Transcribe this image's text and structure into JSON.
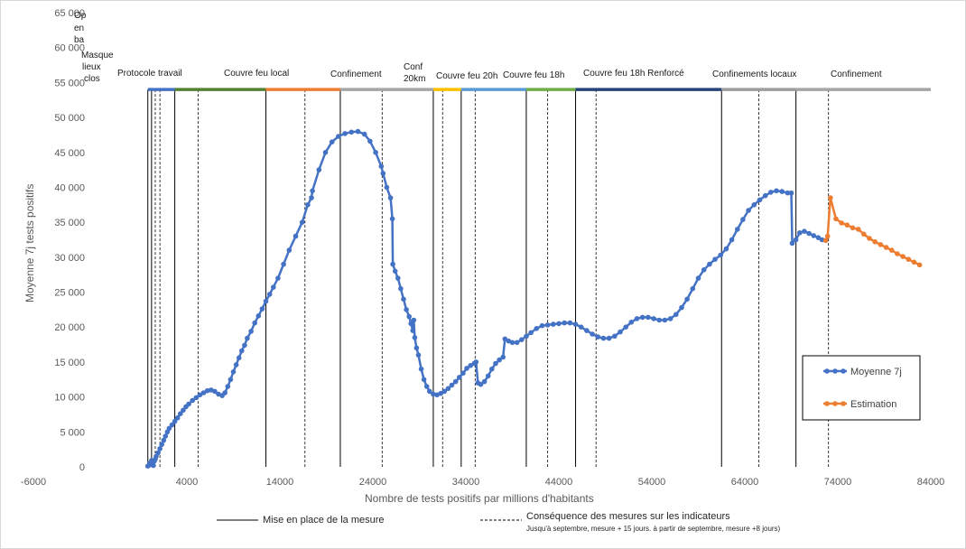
{
  "chart_data": {
    "type": "line",
    "xlabel": "Nombre  de tests positifs par millions d'habitants",
    "ylabel": "Moyenne  7j tests positifs",
    "xlim": [
      -6000,
      84000
    ],
    "ylim": [
      0,
      65000
    ],
    "x_ticks": [
      -6000,
      4000,
      14000,
      24000,
      34000,
      44000,
      54000,
      64000,
      74000,
      84000
    ],
    "y_ticks": [
      0,
      5000,
      10000,
      15000,
      20000,
      25000,
      30000,
      35000,
      40000,
      45000,
      50000,
      55000,
      60000,
      65000
    ],
    "x_tick_labels": [
      "-6000",
      "4000",
      "14000",
      "24000",
      "34000",
      "44000",
      "54000",
      "64000",
      "74000",
      "84000"
    ],
    "y_tick_labels": [
      "0",
      "5 000",
      "10 000",
      "15 000",
      "20 000",
      "25 000",
      "30 000",
      "35 000",
      "40 000",
      "45 000",
      "50 000",
      "55 000",
      "60 000",
      "65 000"
    ],
    "grid": false,
    "legend_position": "right",
    "series": [
      {
        "name": "Moyenne 7j",
        "color": "#4472c4",
        "points": [
          [
            -200,
            100
          ],
          [
            0,
            500
          ],
          [
            100,
            300
          ],
          [
            200,
            900
          ],
          [
            300,
            500
          ],
          [
            400,
            200
          ],
          [
            500,
            800
          ],
          [
            600,
            1100
          ],
          [
            700,
            1500
          ],
          [
            900,
            2000
          ],
          [
            1100,
            2600
          ],
          [
            1300,
            3200
          ],
          [
            1500,
            3800
          ],
          [
            1700,
            4400
          ],
          [
            1900,
            5000
          ],
          [
            2100,
            5500
          ],
          [
            2400,
            6000
          ],
          [
            2700,
            6500
          ],
          [
            3000,
            7000
          ],
          [
            3300,
            7600
          ],
          [
            3600,
            8100
          ],
          [
            3900,
            8600
          ],
          [
            4200,
            9000
          ],
          [
            4600,
            9500
          ],
          [
            5000,
            9900
          ],
          [
            5400,
            10300
          ],
          [
            5800,
            10600
          ],
          [
            6200,
            10900
          ],
          [
            6600,
            11000
          ],
          [
            7000,
            10800
          ],
          [
            7400,
            10400
          ],
          [
            7800,
            10200
          ],
          [
            8100,
            10600
          ],
          [
            8400,
            11500
          ],
          [
            8700,
            12500
          ],
          [
            9000,
            13600
          ],
          [
            9300,
            14600
          ],
          [
            9600,
            15600
          ],
          [
            9900,
            16600
          ],
          [
            10200,
            17400
          ],
          [
            10500,
            18400
          ],
          [
            10900,
            19400
          ],
          [
            11300,
            20600
          ],
          [
            11700,
            21600
          ],
          [
            12100,
            22600
          ],
          [
            12500,
            23700
          ],
          [
            12900,
            24700
          ],
          [
            13300,
            25700
          ],
          [
            13800,
            27000
          ],
          [
            14400,
            29000
          ],
          [
            15000,
            31000
          ],
          [
            15700,
            33000
          ],
          [
            16400,
            35000
          ],
          [
            17000,
            37500
          ],
          [
            17400,
            38500
          ],
          [
            17500,
            39500
          ],
          [
            18200,
            42500
          ],
          [
            18900,
            45000
          ],
          [
            19600,
            46500
          ],
          [
            20300,
            47300
          ],
          [
            21000,
            47700
          ],
          [
            21700,
            47900
          ],
          [
            22400,
            48000
          ],
          [
            23100,
            47600
          ],
          [
            23700,
            46600
          ],
          [
            24300,
            45000
          ],
          [
            24900,
            43000
          ],
          [
            25100,
            42000
          ],
          [
            25500,
            40000
          ],
          [
            25900,
            38500
          ],
          [
            26100,
            35500
          ],
          [
            26150,
            29000
          ],
          [
            26400,
            28000
          ],
          [
            26700,
            27000
          ],
          [
            27000,
            25500
          ],
          [
            27300,
            24000
          ],
          [
            27600,
            22500
          ],
          [
            27900,
            21500
          ],
          [
            28100,
            20500
          ],
          [
            28300,
            19500
          ],
          [
            28400,
            21000
          ],
          [
            28500,
            18500
          ],
          [
            28700,
            17000
          ],
          [
            28900,
            16000
          ],
          [
            29200,
            14000
          ],
          [
            29500,
            12500
          ],
          [
            29800,
            11500
          ],
          [
            30100,
            10800
          ],
          [
            30500,
            10400
          ],
          [
            30900,
            10300
          ],
          [
            31300,
            10500
          ],
          [
            31700,
            10800
          ],
          [
            32100,
            11200
          ],
          [
            32500,
            11700
          ],
          [
            32900,
            12200
          ],
          [
            33300,
            12800
          ],
          [
            33700,
            13400
          ],
          [
            34100,
            14100
          ],
          [
            34500,
            14500
          ],
          [
            34900,
            14800
          ],
          [
            35100,
            15000
          ],
          [
            35300,
            12000
          ],
          [
            35600,
            11800
          ],
          [
            36000,
            12200
          ],
          [
            36400,
            13000
          ],
          [
            36800,
            14000
          ],
          [
            37200,
            14800
          ],
          [
            37600,
            15300
          ],
          [
            38000,
            15700
          ],
          [
            38200,
            18300
          ],
          [
            38600,
            18000
          ],
          [
            39000,
            17800
          ],
          [
            39500,
            17800
          ],
          [
            40000,
            18200
          ],
          [
            40500,
            18700
          ],
          [
            41000,
            19200
          ],
          [
            41600,
            19800
          ],
          [
            42200,
            20200
          ],
          [
            42800,
            20300
          ],
          [
            43400,
            20400
          ],
          [
            44000,
            20500
          ],
          [
            44600,
            20600
          ],
          [
            45200,
            20600
          ],
          [
            45800,
            20400
          ],
          [
            46400,
            20000
          ],
          [
            47000,
            19500
          ],
          [
            47600,
            19000
          ],
          [
            48200,
            18600
          ],
          [
            48800,
            18400
          ],
          [
            49400,
            18400
          ],
          [
            50000,
            18700
          ],
          [
            50600,
            19300
          ],
          [
            51200,
            20000
          ],
          [
            51800,
            20700
          ],
          [
            52400,
            21200
          ],
          [
            53000,
            21400
          ],
          [
            53600,
            21400
          ],
          [
            54200,
            21200
          ],
          [
            54800,
            21000
          ],
          [
            55400,
            21000
          ],
          [
            56000,
            21200
          ],
          [
            56600,
            21800
          ],
          [
            57200,
            22800
          ],
          [
            57800,
            24000
          ],
          [
            58400,
            25500
          ],
          [
            59000,
            27000
          ],
          [
            59600,
            28200
          ],
          [
            60200,
            29000
          ],
          [
            60800,
            29700
          ],
          [
            61400,
            30300
          ],
          [
            62000,
            31200
          ],
          [
            62600,
            32500
          ],
          [
            63200,
            34000
          ],
          [
            63800,
            35400
          ],
          [
            64400,
            36700
          ],
          [
            65000,
            37500
          ],
          [
            65600,
            38200
          ],
          [
            66200,
            38800
          ],
          [
            66800,
            39300
          ],
          [
            67400,
            39500
          ],
          [
            68000,
            39400
          ],
          [
            68600,
            39200
          ],
          [
            69000,
            39200
          ],
          [
            69100,
            32000
          ],
          [
            69500,
            32500
          ],
          [
            69900,
            33500
          ],
          [
            70400,
            33700
          ],
          [
            70900,
            33400
          ],
          [
            71400,
            33100
          ],
          [
            71900,
            32800
          ],
          [
            72300,
            32500
          ],
          [
            72700,
            32400
          ]
        ]
      },
      {
        "name": "Estimation",
        "color": "#ed7d31",
        "points": [
          [
            72700,
            32400
          ],
          [
            72900,
            33000
          ],
          [
            73200,
            38500
          ],
          [
            73800,
            35500
          ],
          [
            74400,
            34900
          ],
          [
            75000,
            34600
          ],
          [
            75600,
            34200
          ],
          [
            76200,
            34000
          ],
          [
            76800,
            33300
          ],
          [
            77400,
            32700
          ],
          [
            78000,
            32200
          ],
          [
            78600,
            31800
          ],
          [
            79200,
            31400
          ],
          [
            79800,
            31000
          ],
          [
            80400,
            30500
          ],
          [
            81000,
            30100
          ],
          [
            81600,
            29700
          ],
          [
            82200,
            29300
          ],
          [
            82800,
            28900
          ]
        ]
      }
    ]
  },
  "measures": {
    "solid_x": [
      -200,
      200,
      2700,
      12500,
      20500,
      30500,
      33500,
      40500,
      45800,
      61500,
      69500
    ],
    "dashed_x": [
      600,
      1100,
      5200,
      16700,
      25000,
      31500,
      35000,
      42800,
      48000,
      65500,
      73000
    ],
    "bar_y": 54000,
    "segments": [
      {
        "x0": -200,
        "x1": 2700,
        "color": "#4472c4"
      },
      {
        "x0": 2700,
        "x1": 12500,
        "color": "#548235"
      },
      {
        "x0": 12500,
        "x1": 20500,
        "color": "#ed7d31"
      },
      {
        "x0": 20500,
        "x1": 30500,
        "color": "#a5a5a5"
      },
      {
        "x0": 30500,
        "x1": 33500,
        "color": "#ffc000"
      },
      {
        "x0": 33500,
        "x1": 40500,
        "color": "#5b9bd5"
      },
      {
        "x0": 40500,
        "x1": 45800,
        "color": "#70ad47"
      },
      {
        "x0": 45800,
        "x1": 61500,
        "color": "#264478"
      },
      {
        "x0": 61500,
        "x1": 69500,
        "color": "#9e9e9e"
      },
      {
        "x0": 69500,
        "x1": 84000,
        "color": "#a5a5a5"
      }
    ]
  },
  "period_labels": {
    "op_en_ba": [
      "Op",
      "en",
      "ba"
    ],
    "masque": [
      "Masque",
      "lieux",
      "clos"
    ],
    "protocole": "Protocole travail",
    "couvre_local": "Couvre feu local",
    "confinement1": "Confinement",
    "conf20": [
      "Conf",
      "20km"
    ],
    "couvre20": "Couvre feu 20h",
    "couvre18": "Couvre feu 18h",
    "couvre18r": "Couvre feu 18h Renforcé",
    "conf_locaux": "Confinements locaux",
    "confinement2": "Confinement"
  },
  "legend": {
    "series1": "Moyenne 7j",
    "series2": "Estimation"
  },
  "bottom_legend": {
    "solid_label": "Mise en place de la mesure",
    "dashed_label": "Conséquence des mesures sur les indicateurs",
    "dashed_note": "Jusqu'à septembre, mesure + 15 jours. à partir de septembre, mesure +8 jours)"
  }
}
